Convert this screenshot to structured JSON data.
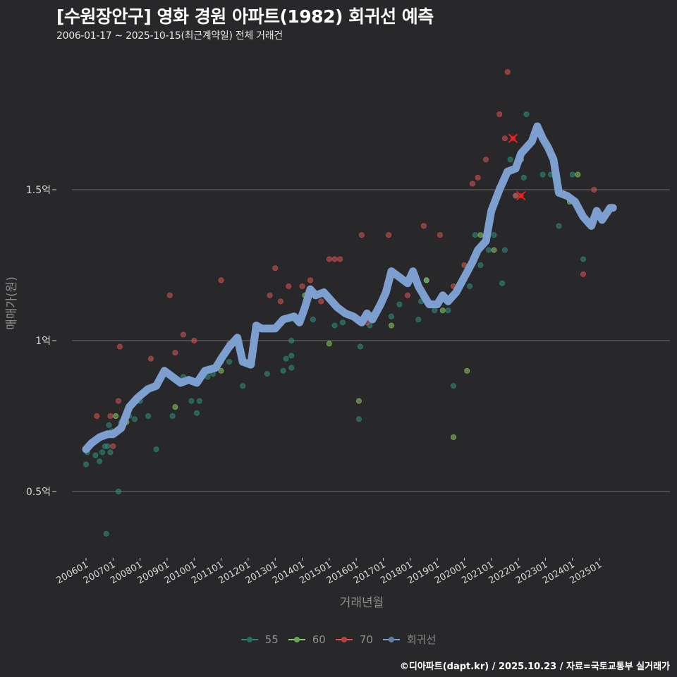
{
  "header": {
    "title": "[수원장안구] 영화 경원 아파트(1982) 회귀선 예측",
    "subtitle": "2006-01-17 ~ 2025-10-15(최근계약일) 전체 거래건"
  },
  "caption": "©디아파트(dapt.kr) / 2025.10.23 / 자료=국토교통부 실거래가",
  "legend": [
    {
      "label": "55",
      "color": "#2a8a7a"
    },
    {
      "label": "60",
      "color": "#7fd36a"
    },
    {
      "label": "70",
      "color": "#e05252"
    },
    {
      "label": "회귀선",
      "color": "#7d9fd0"
    }
  ],
  "colors": {
    "background": "#28282a",
    "grid": "#6e6e6e",
    "series_55": "#2f8f7e",
    "series_60": "#8acb63",
    "series_70": "#d9534f",
    "regression": "#7d9fd0",
    "cancelled": "#ff2222"
  },
  "chart_data": {
    "type": "scatter",
    "title": "[수원장안구] 영화 경원 아파트(1982) 회귀선 예측",
    "subtitle": "2006-01-17 ~ 2025-10-15(최근계약일) 전체 거래건",
    "xlabel": "거래년월",
    "ylabel": "매매가(원)",
    "x_ticks": [
      "200601",
      "200701",
      "200801",
      "200901",
      "201001",
      "201101",
      "201201",
      "201301",
      "201401",
      "201501",
      "201601",
      "201701",
      "201801",
      "201901",
      "202001",
      "202101",
      "202201",
      "202301",
      "202401",
      "202501"
    ],
    "y_ticks": [
      {
        "value": 0.5,
        "label": "0.5억"
      },
      {
        "value": 1.0,
        "label": "1억"
      },
      {
        "value": 1.5,
        "label": "1.5억"
      }
    ],
    "ylim": [
      0.29,
      1.92
    ],
    "xlim": [
      2005.5,
      2026.2
    ],
    "grid": "horizontal",
    "legend_position": "bottom",
    "series": [
      {
        "name": "55",
        "points": [
          [
            2006.0,
            0.59
          ],
          [
            2006.05,
            0.63
          ],
          [
            2006.35,
            0.62
          ],
          [
            2006.5,
            0.6
          ],
          [
            2006.6,
            0.63
          ],
          [
            2006.7,
            0.65
          ],
          [
            2006.8,
            0.65
          ],
          [
            2006.85,
            0.72
          ],
          [
            2006.9,
            0.63
          ],
          [
            2006.95,
            0.7
          ],
          [
            2006.75,
            0.36
          ],
          [
            2007.2,
            0.5
          ],
          [
            2007.3,
            0.73
          ],
          [
            2007.6,
            0.75
          ],
          [
            2007.8,
            0.74
          ],
          [
            2007.9,
            0.8
          ],
          [
            2008.0,
            0.8
          ],
          [
            2008.3,
            0.75
          ],
          [
            2008.6,
            0.64
          ],
          [
            2009.2,
            0.75
          ],
          [
            2009.6,
            0.88
          ],
          [
            2009.9,
            0.8
          ],
          [
            2010.1,
            0.76
          ],
          [
            2010.2,
            0.8
          ],
          [
            2010.3,
            0.88
          ],
          [
            2010.5,
            0.88
          ],
          [
            2010.7,
            0.89
          ],
          [
            2011.0,
            0.93
          ],
          [
            2011.3,
            0.93
          ],
          [
            2011.8,
            0.85
          ],
          [
            2012.7,
            0.89
          ],
          [
            2013.3,
            0.9
          ],
          [
            2013.4,
            0.94
          ],
          [
            2013.6,
            0.91
          ],
          [
            2013.6,
            0.95
          ],
          [
            2013.6,
            1.0
          ],
          [
            2014.4,
            1.07
          ],
          [
            2015.2,
            1.05
          ],
          [
            2015.5,
            1.06
          ],
          [
            2016.1,
            0.74
          ],
          [
            2016.15,
            0.98
          ],
          [
            2016.2,
            1.07
          ],
          [
            2016.5,
            1.05
          ],
          [
            2017.3,
            1.08
          ],
          [
            2017.6,
            1.12
          ],
          [
            2017.7,
            1.2
          ],
          [
            2018.3,
            1.07
          ],
          [
            2018.4,
            1.13
          ],
          [
            2018.6,
            1.2
          ],
          [
            2018.9,
            1.1
          ],
          [
            2019.0,
            1.12
          ],
          [
            2019.4,
            1.1
          ],
          [
            2019.6,
            0.85
          ],
          [
            2020.2,
            1.18
          ],
          [
            2020.4,
            1.35
          ],
          [
            2020.6,
            1.25
          ],
          [
            2020.9,
            1.3
          ],
          [
            2021.1,
            1.35
          ],
          [
            2021.4,
            1.19
          ],
          [
            2021.5,
            1.3
          ],
          [
            2021.7,
            1.6
          ],
          [
            2021.9,
            1.48
          ],
          [
            2022.2,
            1.54
          ],
          [
            2022.3,
            1.75
          ],
          [
            2022.9,
            1.55
          ],
          [
            2023.2,
            1.55
          ],
          [
            2023.5,
            1.38
          ],
          [
            2024.0,
            1.55
          ],
          [
            2024.4,
            1.27
          ],
          [
            2024.7,
            1.38
          ]
        ]
      },
      {
        "name": "60",
        "points": [
          [
            2007.1,
            0.75
          ],
          [
            2007.8,
            0.8
          ],
          [
            2007.5,
            0.73
          ],
          [
            2009.3,
            0.78
          ],
          [
            2009.5,
            0.86
          ],
          [
            2010.0,
            0.86
          ],
          [
            2011.0,
            0.9
          ],
          [
            2014.1,
            1.15
          ],
          [
            2015.0,
            0.99
          ],
          [
            2016.1,
            0.8
          ],
          [
            2017.3,
            1.05
          ],
          [
            2018.6,
            1.2
          ],
          [
            2019.2,
            1.1
          ],
          [
            2019.6,
            0.68
          ],
          [
            2020.1,
            0.9
          ],
          [
            2020.6,
            1.35
          ],
          [
            2021.1,
            1.3
          ],
          [
            2022.1,
            1.6
          ],
          [
            2023.9,
            1.46
          ],
          [
            2024.2,
            1.55
          ]
        ]
      },
      {
        "name": "70",
        "points": [
          [
            2006.4,
            0.75
          ],
          [
            2006.9,
            0.75
          ],
          [
            2007.0,
            0.65
          ],
          [
            2007.2,
            0.8
          ],
          [
            2007.25,
            0.98
          ],
          [
            2008.4,
            0.94
          ],
          [
            2009.1,
            1.15
          ],
          [
            2009.3,
            0.96
          ],
          [
            2009.6,
            1.02
          ],
          [
            2010.0,
            1.0
          ],
          [
            2011.0,
            1.2
          ],
          [
            2011.3,
            0.99
          ],
          [
            2012.8,
            1.15
          ],
          [
            2013.0,
            1.24
          ],
          [
            2013.2,
            1.13
          ],
          [
            2013.5,
            1.18
          ],
          [
            2014.0,
            1.18
          ],
          [
            2014.3,
            1.2
          ],
          [
            2014.7,
            1.13
          ],
          [
            2015.0,
            1.27
          ],
          [
            2015.2,
            1.27
          ],
          [
            2015.4,
            1.27
          ],
          [
            2016.2,
            1.35
          ],
          [
            2016.4,
            1.06
          ],
          [
            2017.2,
            1.35
          ],
          [
            2017.9,
            1.15
          ],
          [
            2018.5,
            1.38
          ],
          [
            2019.1,
            1.35
          ],
          [
            2019.6,
            1.18
          ],
          [
            2020.0,
            1.25
          ],
          [
            2020.3,
            1.52
          ],
          [
            2020.5,
            1.54
          ],
          [
            2020.8,
            1.6
          ],
          [
            2021.3,
            1.75
          ],
          [
            2021.5,
            1.67
          ],
          [
            2021.6,
            1.89
          ],
          [
            2021.9,
            1.48
          ],
          [
            2024.4,
            1.22
          ],
          [
            2024.8,
            1.5
          ]
        ]
      },
      {
        "name": "회귀선",
        "points": [
          [
            2006.0,
            0.64
          ],
          [
            2006.2,
            0.66
          ],
          [
            2006.5,
            0.68
          ],
          [
            2006.8,
            0.69
          ],
          [
            2007.0,
            0.69
          ],
          [
            2007.3,
            0.71
          ],
          [
            2007.6,
            0.78
          ],
          [
            2007.9,
            0.81
          ],
          [
            2008.3,
            0.84
          ],
          [
            2008.6,
            0.85
          ],
          [
            2008.9,
            0.9
          ],
          [
            2009.2,
            0.88
          ],
          [
            2009.5,
            0.86
          ],
          [
            2009.8,
            0.87
          ],
          [
            2010.1,
            0.86
          ],
          [
            2010.4,
            0.9
          ],
          [
            2010.8,
            0.91
          ],
          [
            2011.0,
            0.94
          ],
          [
            2011.3,
            0.98
          ],
          [
            2011.6,
            1.01
          ],
          [
            2011.8,
            0.93
          ],
          [
            2012.1,
            0.92
          ],
          [
            2012.3,
            1.05
          ],
          [
            2012.5,
            1.04
          ],
          [
            2012.8,
            1.04
          ],
          [
            2013.0,
            1.04
          ],
          [
            2013.3,
            1.07
          ],
          [
            2013.7,
            1.08
          ],
          [
            2013.9,
            1.06
          ],
          [
            2014.1,
            1.11
          ],
          [
            2014.3,
            1.17
          ],
          [
            2014.5,
            1.15
          ],
          [
            2014.8,
            1.16
          ],
          [
            2015.1,
            1.13
          ],
          [
            2015.3,
            1.11
          ],
          [
            2015.6,
            1.09
          ],
          [
            2015.9,
            1.08
          ],
          [
            2016.2,
            1.06
          ],
          [
            2016.4,
            1.09
          ],
          [
            2016.6,
            1.07
          ],
          [
            2016.9,
            1.12
          ],
          [
            2017.1,
            1.16
          ],
          [
            2017.3,
            1.23
          ],
          [
            2017.6,
            1.21
          ],
          [
            2017.9,
            1.19
          ],
          [
            2018.1,
            1.23
          ],
          [
            2018.3,
            1.18
          ],
          [
            2018.5,
            1.15
          ],
          [
            2018.7,
            1.12
          ],
          [
            2019.0,
            1.12
          ],
          [
            2019.2,
            1.15
          ],
          [
            2019.4,
            1.13
          ],
          [
            2019.7,
            1.16
          ],
          [
            2020.0,
            1.21
          ],
          [
            2020.3,
            1.26
          ],
          [
            2020.5,
            1.3
          ],
          [
            2020.8,
            1.33
          ],
          [
            2021.0,
            1.43
          ],
          [
            2021.3,
            1.5
          ],
          [
            2021.6,
            1.56
          ],
          [
            2021.9,
            1.57
          ],
          [
            2022.1,
            1.62
          ],
          [
            2022.3,
            1.64
          ],
          [
            2022.5,
            1.66
          ],
          [
            2022.7,
            1.71
          ],
          [
            2022.9,
            1.67
          ],
          [
            2023.1,
            1.64
          ],
          [
            2023.3,
            1.6
          ],
          [
            2023.5,
            1.49
          ],
          [
            2023.8,
            1.48
          ],
          [
            2024.1,
            1.46
          ],
          [
            2024.4,
            1.41
          ],
          [
            2024.7,
            1.38
          ],
          [
            2024.9,
            1.43
          ],
          [
            2025.1,
            1.4
          ],
          [
            2025.4,
            1.44
          ],
          [
            2025.5,
            1.44
          ]
        ]
      }
    ],
    "annotations": [
      {
        "type": "cancelled-marker",
        "x": 2021.8,
        "y": 1.67,
        "label": "x"
      },
      {
        "type": "cancelled-marker",
        "x": 2022.1,
        "y": 1.48,
        "label": "x"
      }
    ]
  }
}
